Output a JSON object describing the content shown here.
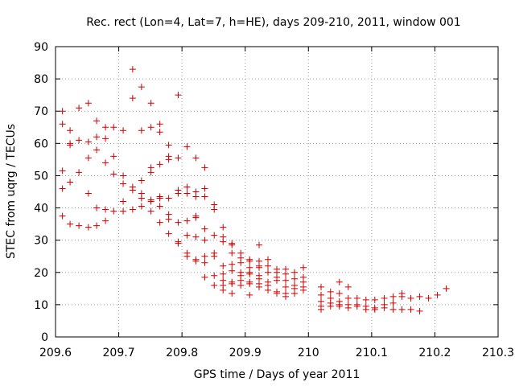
{
  "chart_data": {
    "type": "scatter",
    "title": "Rec. rect (Lon=4, Lat=7, h=HE), days 209-210, 2011, window 001",
    "xlabel": "GPS time / Days of year 2011",
    "ylabel": "STEC from uqrg / TECUs",
    "xlim": [
      209.6,
      210.3
    ],
    "ylim": [
      0,
      90
    ],
    "xticks": [
      209.6,
      209.7,
      209.8,
      209.9,
      210,
      210.1,
      210.2,
      210.3
    ],
    "xtick_labels": [
      "209.6",
      "209.7",
      "209.8",
      "209.9",
      "210",
      "210.1",
      "210.2",
      "210.3"
    ],
    "yticks": [
      0,
      10,
      20,
      30,
      40,
      50,
      60,
      70,
      80,
      90
    ],
    "ytick_labels": [
      "0",
      "10",
      "20",
      "30",
      "40",
      "50",
      "60",
      "70",
      "80",
      "90"
    ],
    "grid": true,
    "marker": "+",
    "marker_color": "#cc0000",
    "points": [
      [
        209.611,
        70.0
      ],
      [
        209.611,
        66.0
      ],
      [
        209.611,
        51.5
      ],
      [
        209.611,
        46.0
      ],
      [
        209.611,
        37.5
      ],
      [
        209.623,
        64.0
      ],
      [
        209.623,
        60.0
      ],
      [
        209.623,
        59.5
      ],
      [
        209.623,
        48.0
      ],
      [
        209.623,
        35.0
      ],
      [
        209.637,
        71.0
      ],
      [
        209.637,
        61.0
      ],
      [
        209.637,
        51.0
      ],
      [
        209.637,
        34.5
      ],
      [
        209.652,
        72.5
      ],
      [
        209.652,
        60.5
      ],
      [
        209.652,
        55.5
      ],
      [
        209.652,
        44.5
      ],
      [
        209.652,
        34.0
      ],
      [
        209.665,
        67.0
      ],
      [
        209.665,
        62.0
      ],
      [
        209.665,
        58.0
      ],
      [
        209.665,
        40.0
      ],
      [
        209.665,
        34.5
      ],
      [
        209.679,
        65.0
      ],
      [
        209.679,
        61.5
      ],
      [
        209.679,
        54.0
      ],
      [
        209.679,
        39.5
      ],
      [
        209.679,
        36.0
      ],
      [
        209.692,
        65.0
      ],
      [
        209.692,
        56.0
      ],
      [
        209.692,
        50.5
      ],
      [
        209.692,
        39.0
      ],
      [
        209.707,
        64.0
      ],
      [
        209.707,
        50.0
      ],
      [
        209.707,
        47.5
      ],
      [
        209.707,
        42.0
      ],
      [
        209.707,
        39.0
      ],
      [
        209.722,
        83.0
      ],
      [
        209.722,
        74.0
      ],
      [
        209.722,
        46.5
      ],
      [
        209.722,
        45.5
      ],
      [
        209.722,
        39.5
      ],
      [
        209.736,
        77.5
      ],
      [
        209.736,
        64.0
      ],
      [
        209.736,
        48.5
      ],
      [
        209.736,
        44.5
      ],
      [
        209.736,
        43.0
      ],
      [
        209.736,
        40.5
      ],
      [
        209.751,
        72.5
      ],
      [
        209.751,
        65.0
      ],
      [
        209.751,
        52.5
      ],
      [
        209.751,
        51.0
      ],
      [
        209.751,
        42.5
      ],
      [
        209.751,
        42.0
      ],
      [
        209.751,
        39.0
      ],
      [
        209.765,
        66.0
      ],
      [
        209.765,
        63.5
      ],
      [
        209.765,
        53.5
      ],
      [
        209.765,
        43.5
      ],
      [
        209.765,
        43.0
      ],
      [
        209.765,
        40.5
      ],
      [
        209.765,
        35.5
      ],
      [
        209.779,
        59.5
      ],
      [
        209.779,
        56.0
      ],
      [
        209.779,
        55.0
      ],
      [
        209.779,
        43.0
      ],
      [
        209.779,
        38.0
      ],
      [
        209.779,
        36.5
      ],
      [
        209.779,
        32.0
      ],
      [
        209.794,
        75.0
      ],
      [
        209.794,
        55.5
      ],
      [
        209.794,
        45.5
      ],
      [
        209.794,
        44.5
      ],
      [
        209.794,
        35.5
      ],
      [
        209.794,
        29.5
      ],
      [
        209.794,
        29.0
      ],
      [
        209.808,
        59.0
      ],
      [
        209.808,
        46.5
      ],
      [
        209.808,
        44.5
      ],
      [
        209.808,
        36.0
      ],
      [
        209.808,
        31.5
      ],
      [
        209.808,
        26.0
      ],
      [
        209.808,
        25.0
      ],
      [
        209.822,
        55.5
      ],
      [
        209.822,
        45.0
      ],
      [
        209.822,
        43.5
      ],
      [
        209.822,
        37.5
      ],
      [
        209.822,
        37.0
      ],
      [
        209.822,
        31.0
      ],
      [
        209.822,
        24.0
      ],
      [
        209.822,
        23.5
      ],
      [
        209.836,
        52.5
      ],
      [
        209.836,
        46.0
      ],
      [
        209.836,
        43.5
      ],
      [
        209.836,
        33.5
      ],
      [
        209.836,
        30.0
      ],
      [
        209.836,
        25.0
      ],
      [
        209.836,
        23.0
      ],
      [
        209.836,
        18.5
      ],
      [
        209.851,
        41.0
      ],
      [
        209.851,
        39.5
      ],
      [
        209.851,
        31.5
      ],
      [
        209.851,
        26.0
      ],
      [
        209.851,
        25.0
      ],
      [
        209.851,
        19.0
      ],
      [
        209.851,
        16.0
      ],
      [
        209.865,
        34.0
      ],
      [
        209.865,
        31.0
      ],
      [
        209.865,
        29.5
      ],
      [
        209.865,
        22.0
      ],
      [
        209.865,
        19.5
      ],
      [
        209.865,
        17.5
      ],
      [
        209.865,
        16.0
      ],
      [
        209.865,
        14.5
      ],
      [
        209.879,
        29.0
      ],
      [
        209.879,
        28.5
      ],
      [
        209.879,
        26.0
      ],
      [
        209.879,
        22.5
      ],
      [
        209.879,
        20.5
      ],
      [
        209.879,
        17.0
      ],
      [
        209.879,
        16.5
      ],
      [
        209.879,
        13.5
      ],
      [
        209.893,
        26.0
      ],
      [
        209.893,
        24.5
      ],
      [
        209.893,
        23.0
      ],
      [
        209.893,
        20.0
      ],
      [
        209.893,
        19.0
      ],
      [
        209.893,
        17.5
      ],
      [
        209.893,
        16.0
      ],
      [
        209.907,
        24.0
      ],
      [
        209.907,
        23.5
      ],
      [
        209.907,
        21.5
      ],
      [
        209.907,
        20.0
      ],
      [
        209.907,
        19.5
      ],
      [
        209.907,
        17.0
      ],
      [
        209.907,
        16.5
      ],
      [
        209.907,
        13.0
      ],
      [
        209.922,
        28.5
      ],
      [
        209.922,
        23.5
      ],
      [
        209.922,
        22.0
      ],
      [
        209.922,
        21.5
      ],
      [
        209.922,
        19.0
      ],
      [
        209.922,
        18.0
      ],
      [
        209.922,
        16.5
      ],
      [
        209.922,
        15.5
      ],
      [
        209.936,
        24.0
      ],
      [
        209.936,
        22.0
      ],
      [
        209.936,
        20.0
      ],
      [
        209.936,
        17.0
      ],
      [
        209.936,
        16.0
      ],
      [
        209.936,
        14.5
      ],
      [
        209.95,
        21.0
      ],
      [
        209.95,
        20.0
      ],
      [
        209.95,
        18.5
      ],
      [
        209.95,
        17.5
      ],
      [
        209.95,
        14.0
      ],
      [
        209.95,
        13.5
      ],
      [
        209.964,
        21.0
      ],
      [
        209.964,
        19.5
      ],
      [
        209.964,
        17.5
      ],
      [
        209.964,
        15.5
      ],
      [
        209.964,
        13.5
      ],
      [
        209.964,
        12.5
      ],
      [
        209.978,
        20.0
      ],
      [
        209.978,
        18.0
      ],
      [
        209.978,
        16.0
      ],
      [
        209.978,
        15.0
      ],
      [
        209.978,
        13.5
      ],
      [
        209.992,
        21.5
      ],
      [
        209.992,
        18.5
      ],
      [
        209.992,
        17.0
      ],
      [
        209.992,
        15.5
      ],
      [
        209.992,
        14.5
      ],
      [
        210.02,
        15.5
      ],
      [
        210.02,
        13.0
      ],
      [
        210.02,
        11.0
      ],
      [
        210.02,
        9.5
      ],
      [
        210.02,
        8.5
      ],
      [
        210.035,
        14.0
      ],
      [
        210.035,
        12.0
      ],
      [
        210.035,
        10.5
      ],
      [
        210.035,
        9.5
      ],
      [
        210.049,
        17.0
      ],
      [
        210.049,
        13.5
      ],
      [
        210.049,
        11.0
      ],
      [
        210.049,
        10.0
      ],
      [
        210.049,
        9.5
      ],
      [
        210.063,
        15.5
      ],
      [
        210.063,
        12.0
      ],
      [
        210.063,
        10.0
      ],
      [
        210.063,
        9.0
      ],
      [
        210.077,
        12.0
      ],
      [
        210.077,
        10.0
      ],
      [
        210.077,
        9.5
      ],
      [
        210.091,
        11.5
      ],
      [
        210.091,
        9.5
      ],
      [
        210.091,
        8.5
      ],
      [
        210.105,
        11.5
      ],
      [
        210.105,
        9.0
      ],
      [
        210.105,
        8.5
      ],
      [
        210.12,
        12.0
      ],
      [
        210.12,
        10.0
      ],
      [
        210.12,
        9.0
      ],
      [
        210.134,
        12.5
      ],
      [
        210.134,
        10.5
      ],
      [
        210.134,
        8.5
      ],
      [
        210.148,
        13.5
      ],
      [
        210.148,
        12.5
      ],
      [
        210.148,
        8.5
      ],
      [
        210.162,
        12.0
      ],
      [
        210.162,
        8.5
      ],
      [
        210.176,
        12.5
      ],
      [
        210.176,
        8.0
      ],
      [
        210.19,
        12.0
      ],
      [
        210.204,
        13.0
      ],
      [
        210.218,
        15.0
      ]
    ]
  }
}
